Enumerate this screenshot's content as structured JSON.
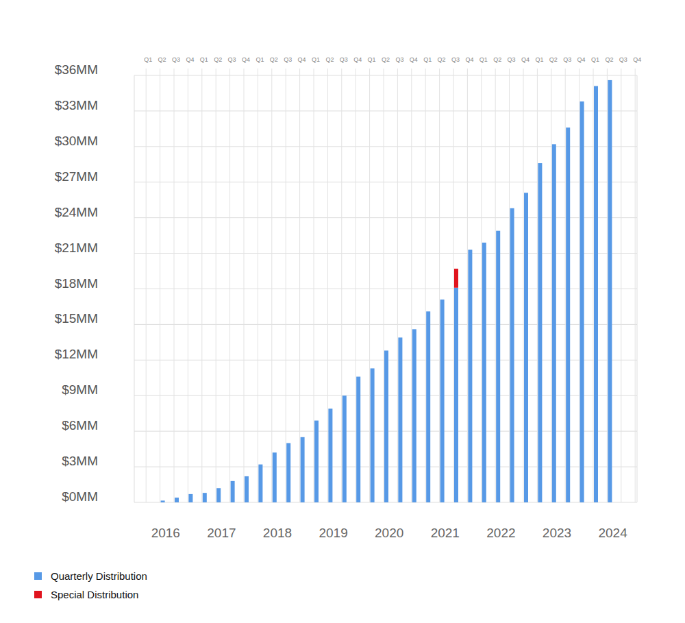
{
  "chart_data": {
    "type": "bar",
    "stacked": true,
    "grid": true,
    "legend": "bottom-left",
    "categories": [
      "Q1",
      "Q2",
      "Q3",
      "Q4",
      "Q1",
      "Q2",
      "Q3",
      "Q4",
      "Q1",
      "Q2",
      "Q3",
      "Q4",
      "Q1",
      "Q2",
      "Q3",
      "Q4",
      "Q1",
      "Q2",
      "Q3",
      "Q4",
      "Q1",
      "Q2",
      "Q3",
      "Q4",
      "Q1",
      "Q2",
      "Q3",
      "Q4",
      "Q1",
      "Q2",
      "Q3",
      "Q4",
      "Q1",
      "Q2",
      "Q3",
      "Q4"
    ],
    "year_labels": [
      "2016",
      "2017",
      "2018",
      "2019",
      "2020",
      "2021",
      "2022",
      "2023",
      "2024"
    ],
    "series": [
      {
        "name": "Quarterly Distribution",
        "color": "#5799e6",
        "values": [
          0,
          0.15,
          0.4,
          0.7,
          0.8,
          1.2,
          1.8,
          2.2,
          3.2,
          4.2,
          5.0,
          5.5,
          6.9,
          7.9,
          9.0,
          10.6,
          11.3,
          12.8,
          13.9,
          14.6,
          16.1,
          17.1,
          18.1,
          21.3,
          21.9,
          22.9,
          24.8,
          26.1,
          28.6,
          30.2,
          31.6,
          33.8,
          35.1,
          35.6,
          null,
          null
        ]
      },
      {
        "name": "Special Distribution",
        "color": "#e0141e",
        "values": [
          null,
          null,
          null,
          null,
          null,
          null,
          null,
          null,
          null,
          null,
          null,
          null,
          null,
          null,
          null,
          null,
          null,
          null,
          null,
          null,
          null,
          null,
          1.6,
          null,
          null,
          null,
          null,
          null,
          null,
          null,
          null,
          null,
          null,
          null,
          null,
          null
        ]
      }
    ],
    "ylim": [
      0,
      36
    ],
    "yticks": [
      {
        "value": 0,
        "label": "$0MM"
      },
      {
        "value": 3,
        "label": "$3MM"
      },
      {
        "value": 6,
        "label": "$6MM"
      },
      {
        "value": 9,
        "label": "$9MM"
      },
      {
        "value": 12,
        "label": "$12MM"
      },
      {
        "value": 15,
        "label": "$15MM"
      },
      {
        "value": 18,
        "label": "$18MM"
      },
      {
        "value": 21,
        "label": "$21MM"
      },
      {
        "value": 24,
        "label": "$24MM"
      },
      {
        "value": 27,
        "label": "$27MM"
      },
      {
        "value": 30,
        "label": "$30MM"
      },
      {
        "value": 33,
        "label": "$33MM"
      },
      {
        "value": 36,
        "label": "$36MM"
      }
    ]
  }
}
